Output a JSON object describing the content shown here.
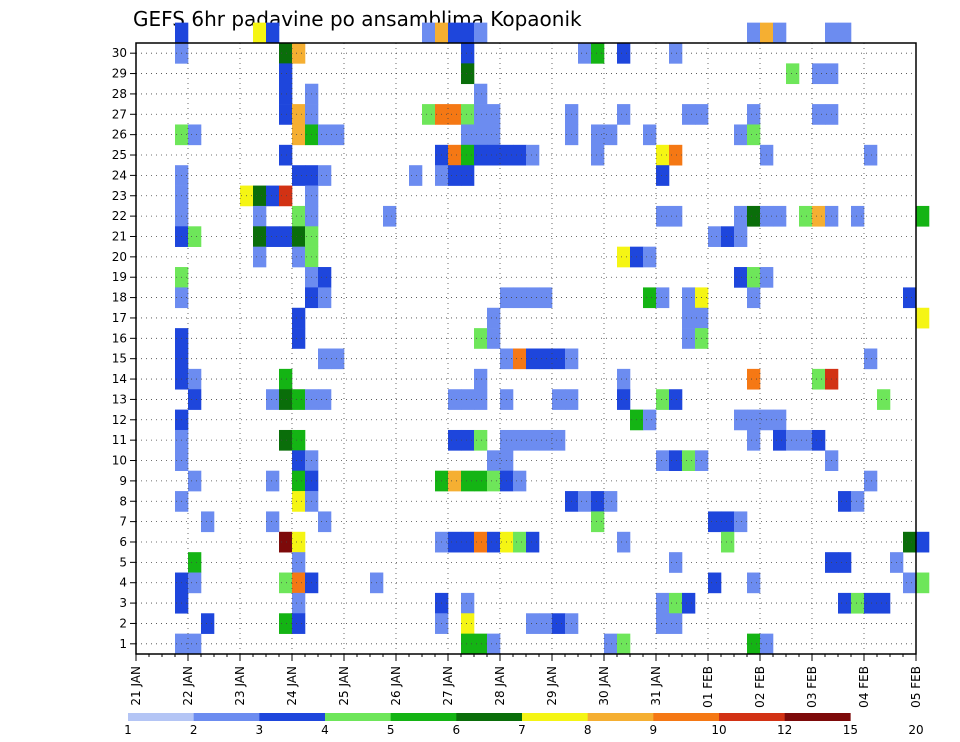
{
  "chart_data": {
    "type": "heatmap",
    "title": "GEFS 6hr padavine po ansamblima Kopaonik",
    "y_tick_labels": [
      "1",
      "2",
      "3",
      "4",
      "5",
      "6",
      "7",
      "8",
      "9",
      "10",
      "11",
      "12",
      "13",
      "14",
      "15",
      "16",
      "17",
      "18",
      "19",
      "20",
      "21",
      "22",
      "23",
      "24",
      "25",
      "26",
      "27",
      "28",
      "29",
      "30"
    ],
    "x_tick_labels": [
      "21 JAN",
      "22 JAN",
      "23 JAN",
      "24 JAN",
      "25 JAN",
      "26 JAN",
      "27 JAN",
      "28 JAN",
      "29 JAN",
      "30 JAN",
      "31 JAN",
      "01 FEB",
      "02 FEB",
      "03 FEB",
      "04 FEB",
      "05 FEB"
    ],
    "grid": true,
    "legend_position": "bottom",
    "colorbar": {
      "labels": [
        "1",
        "2",
        "3",
        "4",
        "5",
        "6",
        "7",
        "8",
        "9",
        "10",
        "12",
        "15",
        "20"
      ],
      "colors": [
        "#b4c5f5",
        "#6c8cf0",
        "#1e46dc",
        "#6ee65a",
        "#14b414",
        "#0a6e0a",
        "#f5f514",
        "#f5af32",
        "#f57814",
        "#d23214",
        "#7d0a0a"
      ]
    },
    "cells": [
      [
        3,
        30,
        2
      ],
      [
        9,
        30,
        6
      ],
      [
        10,
        30,
        2
      ],
      [
        22,
        30,
        1
      ],
      [
        23,
        30,
        7
      ],
      [
        24,
        30,
        2
      ],
      [
        25,
        30,
        2
      ],
      [
        26,
        30,
        1
      ],
      [
        47,
        30,
        1
      ],
      [
        48,
        30,
        7
      ],
      [
        49,
        30,
        1
      ],
      [
        53,
        30,
        1
      ],
      [
        54,
        30,
        1
      ],
      [
        3,
        29,
        1
      ],
      [
        11,
        29,
        5
      ],
      [
        12,
        29,
        7
      ],
      [
        25,
        29,
        2
      ],
      [
        34,
        29,
        1
      ],
      [
        35,
        29,
        4
      ],
      [
        37,
        29,
        2
      ],
      [
        41,
        29,
        1
      ],
      [
        11,
        28,
        2
      ],
      [
        25,
        28,
        5
      ],
      [
        50,
        28,
        3
      ],
      [
        52,
        28,
        1
      ],
      [
        53,
        28,
        1
      ],
      [
        11,
        27,
        2
      ],
      [
        13,
        27,
        1
      ],
      [
        26,
        27,
        1
      ],
      [
        11,
        26,
        2
      ],
      [
        12,
        26,
        7
      ],
      [
        13,
        26,
        1
      ],
      [
        22,
        26,
        3
      ],
      [
        23,
        26,
        8
      ],
      [
        24,
        26,
        8
      ],
      [
        25,
        26,
        3
      ],
      [
        26,
        26,
        1
      ],
      [
        27,
        26,
        1
      ],
      [
        33,
        26,
        1
      ],
      [
        37,
        26,
        1
      ],
      [
        42,
        26,
        1
      ],
      [
        43,
        26,
        1
      ],
      [
        47,
        26,
        1
      ],
      [
        52,
        26,
        1
      ],
      [
        53,
        26,
        1
      ],
      [
        3,
        25,
        3
      ],
      [
        4,
        25,
        1
      ],
      [
        12,
        25,
        7
      ],
      [
        13,
        25,
        4
      ],
      [
        14,
        25,
        1
      ],
      [
        15,
        25,
        1
      ],
      [
        25,
        25,
        1
      ],
      [
        26,
        25,
        1
      ],
      [
        27,
        25,
        1
      ],
      [
        33,
        25,
        1
      ],
      [
        35,
        25,
        1
      ],
      [
        36,
        25,
        1
      ],
      [
        39,
        25,
        1
      ],
      [
        46,
        25,
        1
      ],
      [
        47,
        25,
        3
      ],
      [
        11,
        24,
        2
      ],
      [
        23,
        24,
        2
      ],
      [
        24,
        24,
        8
      ],
      [
        25,
        24,
        4
      ],
      [
        26,
        24,
        2
      ],
      [
        27,
        24,
        2
      ],
      [
        28,
        24,
        2
      ],
      [
        29,
        24,
        2
      ],
      [
        30,
        24,
        1
      ],
      [
        35,
        24,
        1
      ],
      [
        40,
        24,
        6
      ],
      [
        41,
        24,
        8
      ],
      [
        48,
        24,
        1
      ],
      [
        56,
        24,
        1
      ],
      [
        3,
        23,
        1
      ],
      [
        12,
        23,
        2
      ],
      [
        13,
        23,
        2
      ],
      [
        14,
        23,
        1
      ],
      [
        21,
        23,
        1
      ],
      [
        23,
        23,
        1
      ],
      [
        24,
        23,
        2
      ],
      [
        25,
        23,
        2
      ],
      [
        40,
        23,
        2
      ],
      [
        3,
        22,
        1
      ],
      [
        8,
        22,
        6
      ],
      [
        9,
        22,
        5
      ],
      [
        10,
        22,
        2
      ],
      [
        11,
        22,
        9
      ],
      [
        13,
        22,
        1
      ],
      [
        3,
        21,
        1
      ],
      [
        9,
        21,
        1
      ],
      [
        12,
        21,
        3
      ],
      [
        13,
        21,
        1
      ],
      [
        19,
        21,
        1
      ],
      [
        40,
        21,
        1
      ],
      [
        41,
        21,
        1
      ],
      [
        46,
        21,
        1
      ],
      [
        47,
        21,
        5
      ],
      [
        48,
        21,
        1
      ],
      [
        49,
        21,
        1
      ],
      [
        51,
        21,
        3
      ],
      [
        52,
        21,
        7
      ],
      [
        53,
        21,
        1
      ],
      [
        55,
        21,
        1
      ],
      [
        60,
        21,
        4
      ],
      [
        3,
        20,
        2
      ],
      [
        4,
        20,
        3
      ],
      [
        9,
        20,
        5
      ],
      [
        10,
        20,
        2
      ],
      [
        11,
        20,
        2
      ],
      [
        12,
        20,
        5
      ],
      [
        13,
        20,
        3
      ],
      [
        44,
        20,
        1
      ],
      [
        45,
        20,
        2
      ],
      [
        46,
        20,
        1
      ],
      [
        9,
        19,
        1
      ],
      [
        12,
        19,
        1
      ],
      [
        13,
        19,
        3
      ],
      [
        37,
        19,
        6
      ],
      [
        38,
        19,
        2
      ],
      [
        39,
        19,
        1
      ],
      [
        3,
        18,
        3
      ],
      [
        13,
        18,
        1
      ],
      [
        14,
        18,
        2
      ],
      [
        46,
        18,
        2
      ],
      [
        47,
        18,
        3
      ],
      [
        48,
        18,
        1
      ],
      [
        3,
        17,
        1
      ],
      [
        13,
        17,
        2
      ],
      [
        14,
        17,
        1
      ],
      [
        28,
        17,
        1
      ],
      [
        29,
        17,
        1
      ],
      [
        30,
        17,
        1
      ],
      [
        31,
        17,
        1
      ],
      [
        39,
        17,
        4
      ],
      [
        40,
        17,
        1
      ],
      [
        42,
        17,
        1
      ],
      [
        43,
        17,
        6
      ],
      [
        47,
        17,
        1
      ],
      [
        59,
        17,
        2
      ],
      [
        12,
        16,
        2
      ],
      [
        27,
        16,
        1
      ],
      [
        42,
        16,
        1
      ],
      [
        43,
        16,
        1
      ],
      [
        60,
        16,
        6
      ],
      [
        3,
        15,
        2
      ],
      [
        12,
        15,
        2
      ],
      [
        26,
        15,
        3
      ],
      [
        27,
        15,
        1
      ],
      [
        42,
        15,
        1
      ],
      [
        43,
        15,
        3
      ],
      [
        3,
        14,
        2
      ],
      [
        14,
        14,
        1
      ],
      [
        15,
        14,
        1
      ],
      [
        28,
        14,
        1
      ],
      [
        29,
        14,
        8
      ],
      [
        30,
        14,
        2
      ],
      [
        31,
        14,
        2
      ],
      [
        32,
        14,
        2
      ],
      [
        33,
        14,
        1
      ],
      [
        56,
        14,
        1
      ],
      [
        3,
        13,
        2
      ],
      [
        4,
        13,
        1
      ],
      [
        11,
        13,
        4
      ],
      [
        26,
        13,
        1
      ],
      [
        37,
        13,
        1
      ],
      [
        47,
        13,
        8
      ],
      [
        52,
        13,
        3
      ],
      [
        53,
        13,
        9
      ],
      [
        4,
        12,
        2
      ],
      [
        10,
        12,
        1
      ],
      [
        11,
        12,
        5
      ],
      [
        12,
        12,
        4
      ],
      [
        13,
        12,
        1
      ],
      [
        14,
        12,
        1
      ],
      [
        24,
        12,
        1
      ],
      [
        25,
        12,
        1
      ],
      [
        26,
        12,
        1
      ],
      [
        28,
        12,
        1
      ],
      [
        32,
        12,
        1
      ],
      [
        33,
        12,
        1
      ],
      [
        37,
        12,
        2
      ],
      [
        40,
        12,
        3
      ],
      [
        41,
        12,
        2
      ],
      [
        57,
        12,
        3
      ],
      [
        3,
        11,
        2
      ],
      [
        38,
        11,
        4
      ],
      [
        39,
        11,
        1
      ],
      [
        46,
        11,
        1
      ],
      [
        47,
        11,
        1
      ],
      [
        48,
        11,
        1
      ],
      [
        49,
        11,
        1
      ],
      [
        3,
        10,
        1
      ],
      [
        11,
        10,
        5
      ],
      [
        12,
        10,
        4
      ],
      [
        24,
        10,
        2
      ],
      [
        25,
        10,
        2
      ],
      [
        26,
        10,
        3
      ],
      [
        28,
        10,
        1
      ],
      [
        29,
        10,
        1
      ],
      [
        30,
        10,
        1
      ],
      [
        31,
        10,
        1
      ],
      [
        32,
        10,
        1
      ],
      [
        47,
        10,
        1
      ],
      [
        49,
        10,
        2
      ],
      [
        50,
        10,
        1
      ],
      [
        51,
        10,
        1
      ],
      [
        52,
        10,
        2
      ],
      [
        3,
        9,
        1
      ],
      [
        12,
        9,
        2
      ],
      [
        13,
        9,
        1
      ],
      [
        27,
        9,
        1
      ],
      [
        28,
        9,
        1
      ],
      [
        40,
        9,
        1
      ],
      [
        41,
        9,
        2
      ],
      [
        42,
        9,
        3
      ],
      [
        43,
        9,
        1
      ],
      [
        53,
        9,
        1
      ],
      [
        4,
        8,
        1
      ],
      [
        10,
        8,
        1
      ],
      [
        12,
        8,
        4
      ],
      [
        13,
        8,
        2
      ],
      [
        23,
        8,
        4
      ],
      [
        24,
        8,
        7
      ],
      [
        25,
        8,
        4
      ],
      [
        26,
        8,
        4
      ],
      [
        27,
        8,
        3
      ],
      [
        28,
        8,
        2
      ],
      [
        29,
        8,
        1
      ],
      [
        56,
        8,
        1
      ],
      [
        3,
        7,
        1
      ],
      [
        12,
        7,
        6
      ],
      [
        13,
        7,
        1
      ],
      [
        33,
        7,
        2
      ],
      [
        34,
        7,
        1
      ],
      [
        35,
        7,
        2
      ],
      [
        36,
        7,
        1
      ],
      [
        54,
        7,
        2
      ],
      [
        55,
        7,
        1
      ],
      [
        5,
        6,
        1
      ],
      [
        10,
        6,
        1
      ],
      [
        14,
        6,
        1
      ],
      [
        35,
        6,
        3
      ],
      [
        44,
        6,
        2
      ],
      [
        45,
        6,
        2
      ],
      [
        46,
        6,
        1
      ],
      [
        11,
        5,
        10
      ],
      [
        12,
        5,
        6
      ],
      [
        23,
        5,
        1
      ],
      [
        24,
        5,
        2
      ],
      [
        25,
        5,
        2
      ],
      [
        26,
        5,
        8
      ],
      [
        27,
        5,
        2
      ],
      [
        28,
        5,
        6
      ],
      [
        29,
        5,
        3
      ],
      [
        30,
        5,
        2
      ],
      [
        37,
        5,
        1
      ],
      [
        45,
        5,
        3
      ],
      [
        59,
        5,
        5
      ],
      [
        60,
        5,
        2
      ],
      [
        4,
        4,
        4
      ],
      [
        12,
        4,
        1
      ],
      [
        41,
        4,
        1
      ],
      [
        53,
        4,
        2
      ],
      [
        54,
        4,
        2
      ],
      [
        58,
        4,
        1
      ],
      [
        3,
        3,
        2
      ],
      [
        4,
        3,
        1
      ],
      [
        11,
        3,
        3
      ],
      [
        12,
        3,
        8
      ],
      [
        13,
        3,
        2
      ],
      [
        18,
        3,
        1
      ],
      [
        44,
        3,
        2
      ],
      [
        47,
        3,
        1
      ],
      [
        59,
        3,
        1
      ],
      [
        60,
        3,
        3
      ],
      [
        3,
        2,
        2
      ],
      [
        12,
        2,
        1
      ],
      [
        23,
        2,
        2
      ],
      [
        25,
        2,
        1
      ],
      [
        40,
        2,
        1
      ],
      [
        41,
        2,
        3
      ],
      [
        42,
        2,
        2
      ],
      [
        54,
        2,
        2
      ],
      [
        55,
        2,
        3
      ],
      [
        56,
        2,
        2
      ],
      [
        57,
        2,
        2
      ],
      [
        5,
        1,
        2
      ],
      [
        11,
        1,
        4
      ],
      [
        12,
        1,
        2
      ],
      [
        23,
        1,
        1
      ],
      [
        25,
        1,
        6
      ],
      [
        30,
        1,
        1
      ],
      [
        31,
        1,
        1
      ],
      [
        32,
        1,
        2
      ],
      [
        33,
        1,
        1
      ],
      [
        40,
        1,
        1
      ],
      [
        41,
        1,
        1
      ],
      [
        3,
        0,
        1
      ],
      [
        4,
        0,
        1
      ],
      [
        25,
        0,
        4
      ],
      [
        26,
        0,
        4
      ],
      [
        27,
        0,
        1
      ],
      [
        36,
        0,
        1
      ],
      [
        37,
        0,
        3
      ],
      [
        47,
        0,
        4
      ],
      [
        48,
        0,
        1
      ]
    ]
  }
}
